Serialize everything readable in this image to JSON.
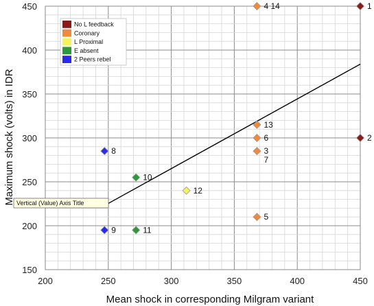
{
  "chart_data": {
    "type": "scatter",
    "xlabel": "Mean shock in corresponding Milgram variant",
    "ylabel": "Maximum shock (volts) in IDR",
    "xlim": [
      200,
      450
    ],
    "ylim": [
      150,
      450
    ],
    "xticks": [
      200,
      250,
      300,
      350,
      400,
      450
    ],
    "yticks": [
      150,
      200,
      250,
      300,
      350,
      400,
      450
    ],
    "grid": true,
    "legend_position": "top-left",
    "series": [
      {
        "name": "No L feedback",
        "color": "#8b1a1a",
        "points": [
          {
            "x": 450,
            "y": 450,
            "label": "1"
          },
          {
            "x": 450,
            "y": 300,
            "label": "2"
          }
        ]
      },
      {
        "name": "Coronary",
        "color": "#f08a3c",
        "points": [
          {
            "x": 368,
            "y": 450,
            "label": "4 14"
          },
          {
            "x": 368,
            "y": 315,
            "label": "13"
          },
          {
            "x": 368,
            "y": 300,
            "label": "6"
          },
          {
            "x": 368,
            "y": 285,
            "label": "3"
          },
          {
            "x": 368,
            "y": 210,
            "label": "5"
          }
        ]
      },
      {
        "name": "L Proximal",
        "color": "#f3f35a",
        "points": [
          {
            "x": 312,
            "y": 240,
            "label": "12"
          }
        ]
      },
      {
        "name": "E absent",
        "color": "#2a9a3a",
        "points": [
          {
            "x": 272,
            "y": 255,
            "label": "10"
          },
          {
            "x": 272,
            "y": 195,
            "label": "11"
          }
        ]
      },
      {
        "name": "2 Peers rebel",
        "color": "#2a2ae8",
        "points": [
          {
            "x": 247,
            "y": 285,
            "label": "8"
          },
          {
            "x": 247,
            "y": 195,
            "label": "9"
          }
        ]
      }
    ],
    "extra_labels": [
      {
        "x": 368,
        "y": 275,
        "label": "7"
      }
    ],
    "trendline": {
      "x1": 247,
      "y1": 223,
      "x2": 450,
      "y2": 384
    },
    "tooltip": "Vertical (Value) Axis Title"
  }
}
